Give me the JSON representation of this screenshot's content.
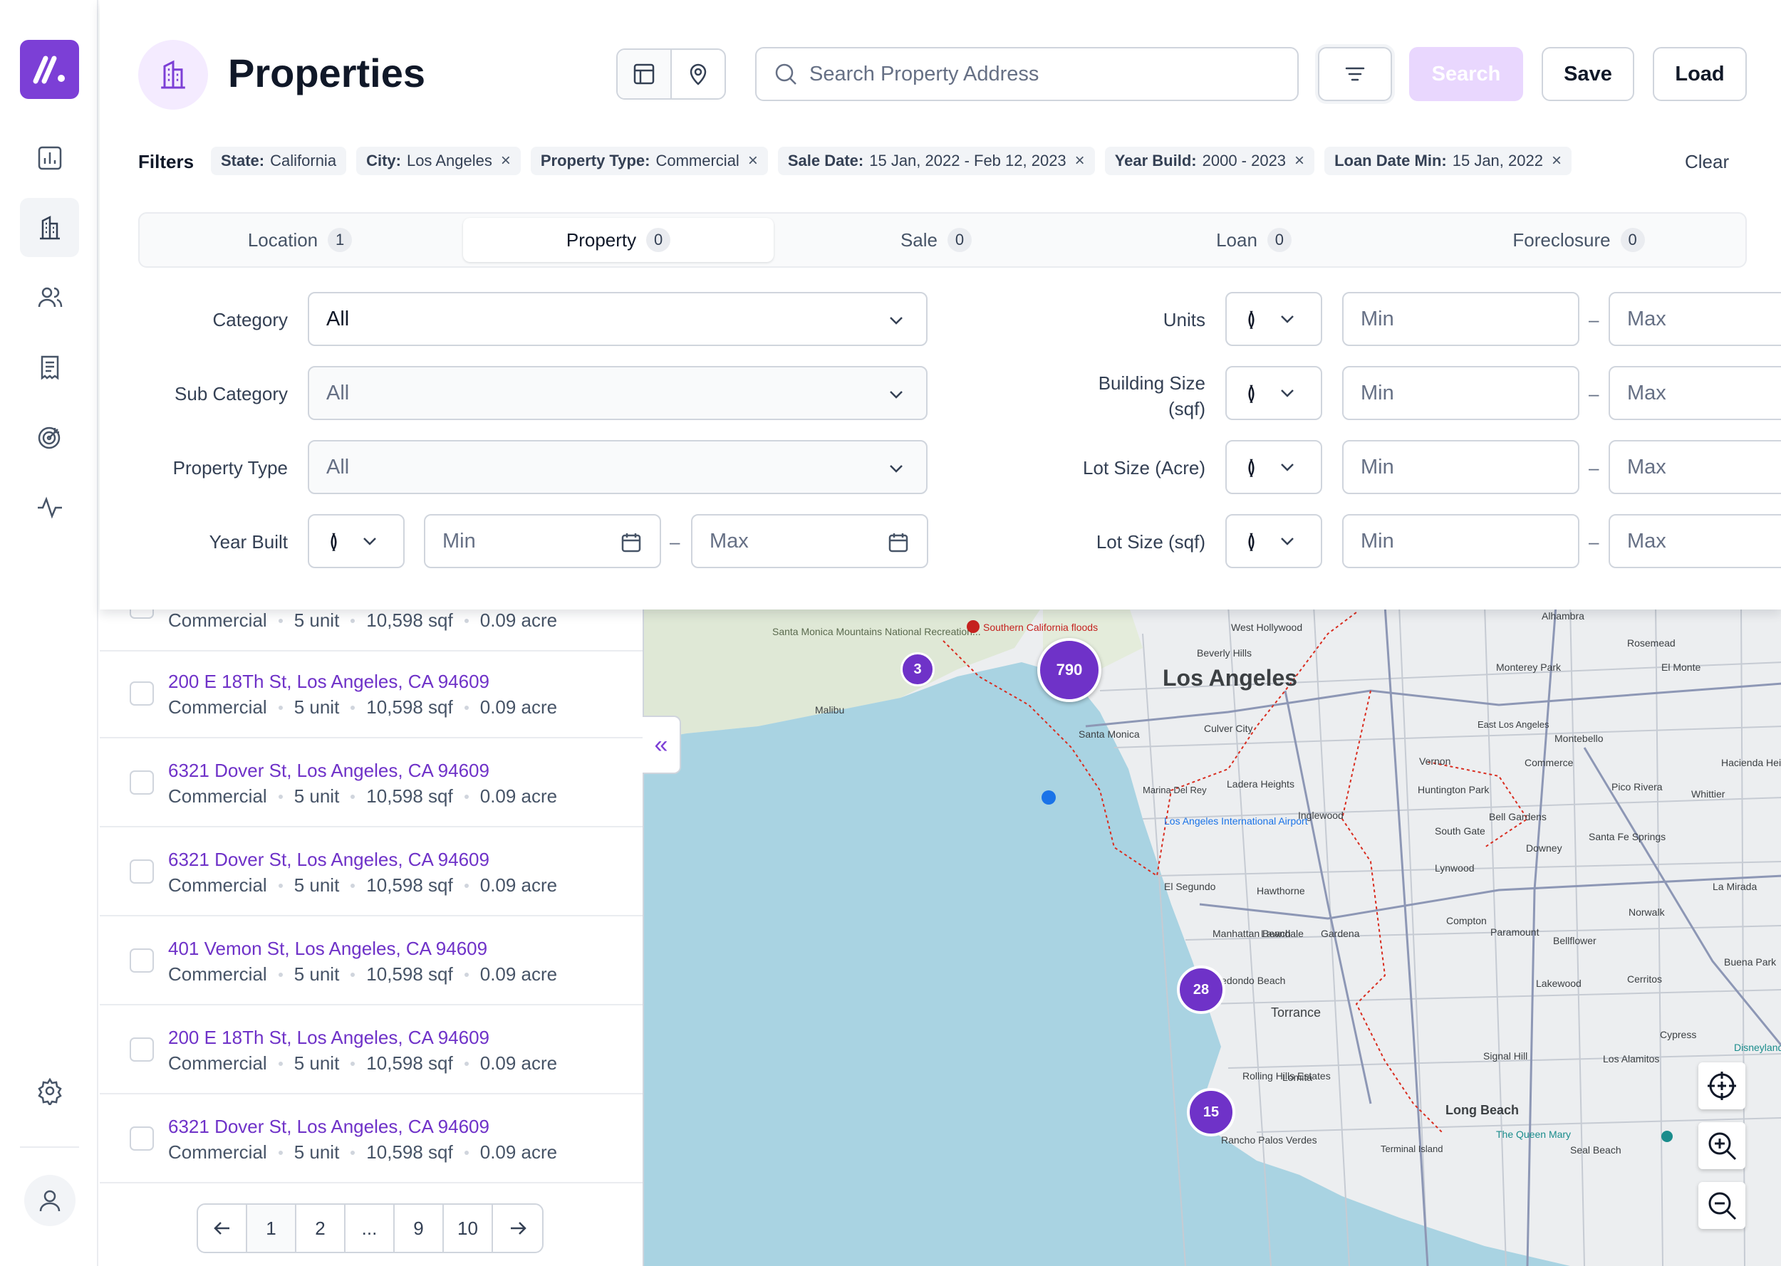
{
  "app": {
    "title": "Properties"
  },
  "search": {
    "placeholder": "Search Property Address"
  },
  "toolbar": {
    "search_label": "Search",
    "save_label": "Save",
    "load_label": "Load"
  },
  "filters": {
    "label": "Filters",
    "clear_label": "Clear",
    "chips": [
      {
        "key": "State:",
        "value": "California"
      },
      {
        "key": "City:",
        "value": "Los Angeles"
      },
      {
        "key": "Property Type:",
        "value": "Commercial"
      },
      {
        "key": "Sale Date:",
        "value": "15 Jan, 2022 - Feb 12, 2023"
      },
      {
        "key": "Year Build:",
        "value": "2000 - 2023"
      },
      {
        "key": "Loan Date Min:",
        "value": "15 Jan, 2022"
      }
    ]
  },
  "tabs": [
    {
      "label": "Location",
      "count": "1"
    },
    {
      "label": "Property",
      "count": "0"
    },
    {
      "label": "Sale",
      "count": "0"
    },
    {
      "label": "Loan",
      "count": "0"
    },
    {
      "label": "Foreclosure",
      "count": "0"
    }
  ],
  "form": {
    "category": {
      "label": "Category",
      "value": "All"
    },
    "sub_category": {
      "label": "Sub Category",
      "value": "All"
    },
    "property_type": {
      "label": "Property Type",
      "value": "All"
    },
    "year_built": {
      "label": "Year Built",
      "min": "Min",
      "max": "Max"
    },
    "units": {
      "label": "Units",
      "min": "Min",
      "max": "Max"
    },
    "building_size": {
      "label_line1": "Building Size",
      "label_line2": "(sqf)",
      "min": "Min",
      "max": "Max"
    },
    "lot_size_acre": {
      "label": "Lot Size (Acre)",
      "min": "Min",
      "max": "Max"
    },
    "lot_size_sqf": {
      "label": "Lot Size (sqf)",
      "min": "Min",
      "max": "Max"
    },
    "operator_symbol": "≬",
    "range_sep": "–"
  },
  "results": [
    {
      "address": "",
      "type": "Commercial",
      "units": "5 unit",
      "sqf": "10,598 sqf",
      "acre": "0.09 acre"
    },
    {
      "address": "200 E 18Th St, Los Angeles, CA 94609",
      "type": "Commercial",
      "units": "5 unit",
      "sqf": "10,598 sqf",
      "acre": "0.09 acre"
    },
    {
      "address": "6321 Dover St, Los Angeles, CA 94609",
      "type": "Commercial",
      "units": "5 unit",
      "sqf": "10,598 sqf",
      "acre": "0.09 acre"
    },
    {
      "address": "6321 Dover St, Los Angeles, CA 94609",
      "type": "Commercial",
      "units": "5 unit",
      "sqf": "10,598 sqf",
      "acre": "0.09 acre"
    },
    {
      "address": "401 Vemon St, Los Angeles, CA 94609",
      "type": "Commercial",
      "units": "5 unit",
      "sqf": "10,598 sqf",
      "acre": "0.09 acre"
    },
    {
      "address": "200 E 18Th St, Los Angeles, CA 94609",
      "type": "Commercial",
      "units": "5 unit",
      "sqf": "10,598 sqf",
      "acre": "0.09 acre"
    },
    {
      "address": "6321 Dover St, Los Angeles, CA 94609",
      "type": "Commercial",
      "units": "5 unit",
      "sqf": "10,598 sqf",
      "acre": "0.09 acre"
    }
  ],
  "pagination": {
    "pages": [
      "1",
      "2",
      "...",
      "9",
      "10"
    ],
    "current": "1"
  },
  "map": {
    "clusters": [
      "790",
      "3",
      "28",
      "15"
    ],
    "places": {
      "la": "Los Angeles",
      "long_beach": "Long Beach",
      "torrance": "Torrance",
      "santa_monica": "Santa Monica",
      "inglewood": "Inglewood",
      "compton": "Compton",
      "downey": "Downey",
      "alhambra": "Alhambra",
      "pasadena_area": "Rosemead",
      "el_monte": "El Monte",
      "montebello": "Montebello",
      "whittier": "Whittier",
      "norwalk": "Norwalk",
      "cerritos": "Cerritos",
      "lakewood": "Lakewood",
      "gardena": "Gardena",
      "hawthorne": "Hawthorne",
      "el_segundo": "El Segundo",
      "manhattan_beach": "Manhattan Beach",
      "redondo_beach": "Redondo Beach",
      "rancho_pv": "Rancho Palos Verdes",
      "rolling_hills": "Rolling Hills Estates",
      "malibu": "Malibu",
      "culver_city": "Culver City",
      "beverly_hills": "Beverly Hills",
      "vernon": "Vernon",
      "south_gate": "South Gate",
      "bell_gardens": "Bell Gardens",
      "pico_rivera": "Pico Rivera",
      "paramount": "Paramount",
      "bellflower": "Bellflower",
      "la_mirada": "La Mirada",
      "buena_park": "Buena Park",
      "cypress": "Cypress",
      "los_alamitos": "Los Alamitos",
      "seal_beach": "Seal Beach",
      "signal_hill": "Signal Hill",
      "lomita": "Lomita",
      "airport": "Los Angeles International Airport",
      "floods": "Southern California floods",
      "queen_mary": "The Queen Mary",
      "lynwood": "Lynwood",
      "disneyland": "Disneyland",
      "huntington_park": "Huntington Park",
      "santa_fe_springs": "Santa Fe Springs",
      "west_hollywood": "West Hollywood",
      "hacienda_heights": "Hacienda Heights",
      "monterey_park": "Monterey Park",
      "east_la": "East Los Angeles",
      "commerce": "Commerce",
      "ladera_heights": "Ladera Heights",
      "marina": "Marina Del Rey",
      "lawndale": "Lawndale",
      "terminal_island": "Terminal Island",
      "smm": "Santa Monica Mountains National Recreation..."
    }
  }
}
